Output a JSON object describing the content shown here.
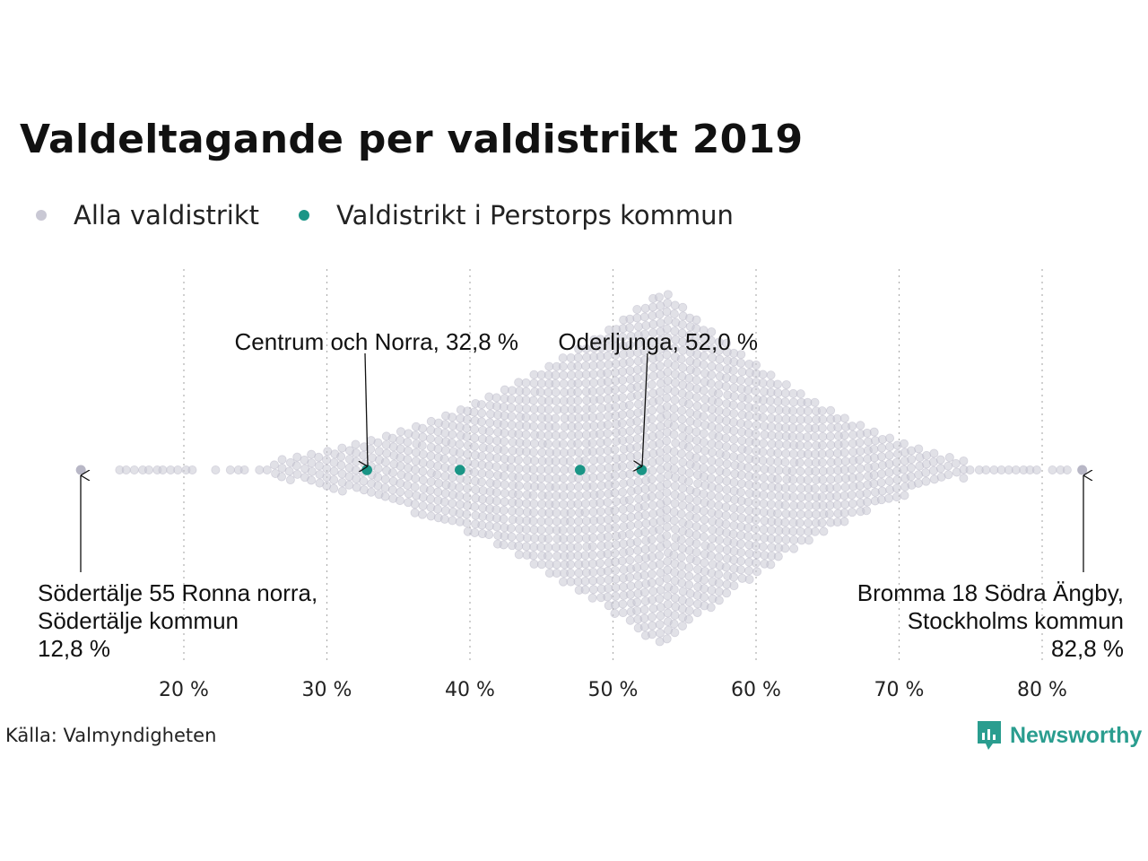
{
  "title": "Valdeltagande per valdistrikt 2019",
  "source": "Källa: Valmyndigheten",
  "brand": "Newsworthy",
  "colors": {
    "all": "#c9c8d4",
    "all_edge": "#b9b8c8",
    "highlight": "#1a9586",
    "brand": "#2a9d8f",
    "grid": "#b0b0b0"
  },
  "chart_data": {
    "type": "scatter",
    "subtype": "beeswarm",
    "title": "Valdeltagande per valdistrikt 2019",
    "xlabel": "",
    "ylabel": "",
    "xlim": [
      12,
      84
    ],
    "x_ticks": [
      20,
      30,
      40,
      50,
      60,
      70,
      80
    ],
    "tick_labels": [
      "20 %",
      "30 %",
      "40 %",
      "50 %",
      "60 %",
      "70 %",
      "80 %"
    ],
    "grid": "vertical dotted",
    "legend_position": "top-left",
    "series": [
      {
        "name": "Alla valdistrikt",
        "color": "#c9c8d4",
        "min": 12.8,
        "max": 82.8,
        "peak": 53.5
      },
      {
        "name": "Valdistrikt i Perstorps kommun",
        "color": "#1a9586",
        "values": [
          32.8,
          39.3,
          47.7,
          52.0
        ]
      }
    ],
    "annotations": [
      {
        "lines": [
          "Centrum och Norra, 32,8 %"
        ],
        "x": 32.8,
        "side": "above",
        "anchor": "end"
      },
      {
        "lines": [
          "Oderljunga, 52,0 %"
        ],
        "x": 52.0,
        "side": "above",
        "anchor": "end"
      },
      {
        "lines": [
          "Södertälje 55 Ronna norra,",
          "Södertälje kommun",
          "12,8 %"
        ],
        "x": 12.8,
        "side": "below",
        "anchor": "start"
      },
      {
        "lines": [
          "Bromma 18 Södra Ängby,",
          "Stockholms kommun",
          "82,8 %"
        ],
        "x": 82.8,
        "side": "below",
        "anchor": "end"
      }
    ]
  }
}
